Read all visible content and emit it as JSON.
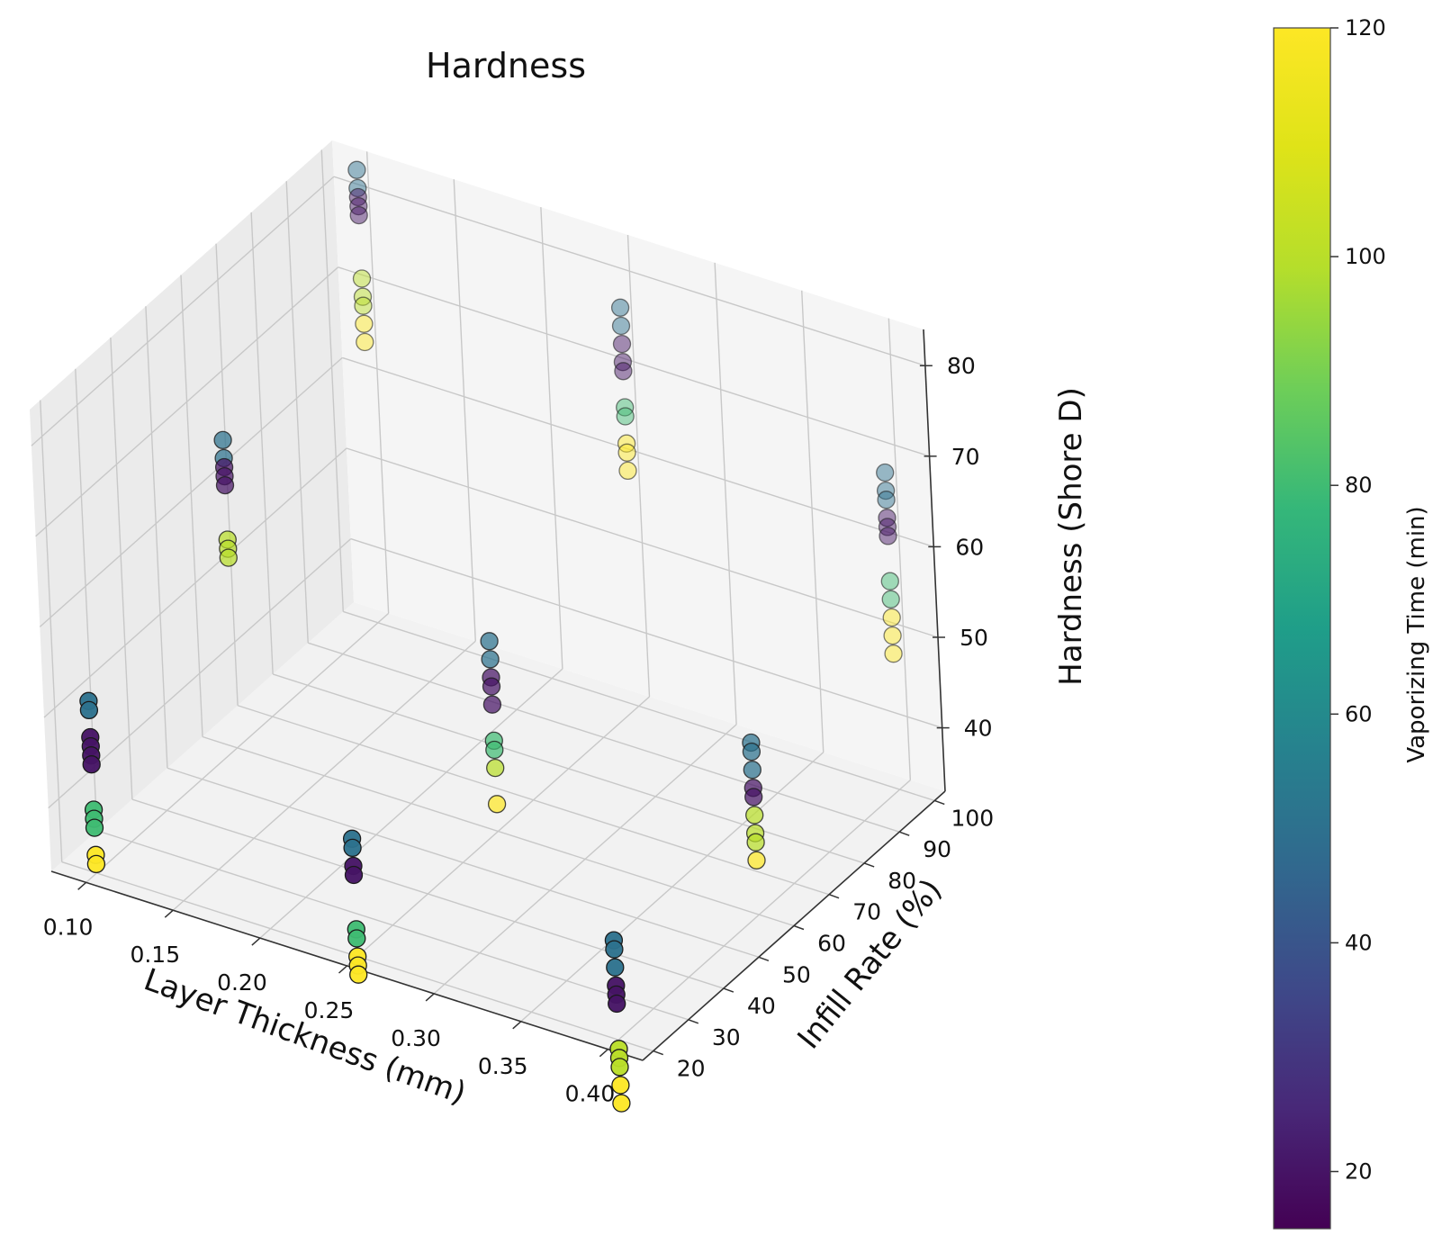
{
  "chart_data": {
    "type": "scatter",
    "projection": "3d",
    "title": "Hardness",
    "xlabel": "Layer Thickness (mm)",
    "ylabel": "Infill Rate (%)",
    "zlabel": "Hardness (Shore D)",
    "colorbar_label": "Vaporizing Time (min)",
    "xlim": [
      0.08,
      0.42
    ],
    "ylim": [
      17,
      103
    ],
    "zlim": [
      33,
      84
    ],
    "clim": [
      15,
      120
    ],
    "x_ticks": [
      "0.10",
      "0.15",
      "0.20",
      "0.25",
      "0.30",
      "0.35",
      "0.40"
    ],
    "y_ticks": [
      "20",
      "30",
      "40",
      "50",
      "60",
      "70",
      "80",
      "90",
      "100"
    ],
    "z_ticks": [
      "40",
      "50",
      "60",
      "70",
      "80"
    ],
    "colorbar_ticks": [
      "20",
      "40",
      "60",
      "80",
      "100",
      "120"
    ],
    "point_groups": [
      {
        "layer_thickness": 0.1,
        "infill_rate": 20,
        "points": [
          [
            50,
            52
          ],
          [
            50,
            51
          ],
          [
            20,
            48
          ],
          [
            20,
            47
          ],
          [
            20,
            46
          ],
          [
            20,
            45
          ],
          [
            80,
            40
          ],
          [
            80,
            39
          ],
          [
            80,
            38
          ],
          [
            120,
            35
          ],
          [
            120,
            34
          ]
        ]
      },
      {
        "layer_thickness": 0.1,
        "infill_rate": 60,
        "points": [
          [
            50,
            67
          ],
          [
            50,
            65
          ],
          [
            20,
            64
          ],
          [
            20,
            63
          ],
          [
            20,
            62
          ],
          [
            100,
            56
          ],
          [
            100,
            55
          ],
          [
            100,
            54
          ]
        ]
      },
      {
        "layer_thickness": 0.1,
        "infill_rate": 100,
        "points": [
          [
            50,
            83
          ],
          [
            50,
            81
          ],
          [
            20,
            80
          ],
          [
            20,
            79
          ],
          [
            20,
            78
          ],
          [
            100,
            71
          ],
          [
            100,
            69
          ],
          [
            100,
            68
          ],
          [
            120,
            66
          ],
          [
            120,
            64
          ]
        ]
      },
      {
        "layer_thickness": 0.25,
        "infill_rate": 20,
        "points": [
          [
            50,
            46
          ],
          [
            50,
            45
          ],
          [
            20,
            43
          ],
          [
            20,
            42
          ],
          [
            80,
            36
          ],
          [
            80,
            35
          ],
          [
            120,
            33
          ],
          [
            120,
            32
          ],
          [
            120,
            31
          ]
        ]
      },
      {
        "layer_thickness": 0.25,
        "infill_rate": 60,
        "points": [
          [
            50,
            54
          ],
          [
            50,
            52
          ],
          [
            20,
            50
          ],
          [
            20,
            49
          ],
          [
            20,
            47
          ],
          [
            80,
            43
          ],
          [
            80,
            42
          ],
          [
            100,
            40
          ],
          [
            120,
            36
          ]
        ]
      },
      {
        "layer_thickness": 0.25,
        "infill_rate": 100,
        "points": [
          [
            50,
            77
          ],
          [
            50,
            75
          ],
          [
            20,
            73
          ],
          [
            20,
            71
          ],
          [
            20,
            70
          ],
          [
            80,
            66
          ],
          [
            80,
            65
          ],
          [
            120,
            62
          ],
          [
            120,
            61
          ],
          [
            120,
            59
          ]
        ]
      },
      {
        "layer_thickness": 0.4,
        "infill_rate": 20,
        "points": [
          [
            50,
            44
          ],
          [
            50,
            43
          ],
          [
            50,
            41
          ],
          [
            20,
            39
          ],
          [
            20,
            38
          ],
          [
            20,
            37
          ],
          [
            100,
            32
          ],
          [
            100,
            31
          ],
          [
            100,
            30
          ],
          [
            120,
            28
          ],
          [
            120,
            26
          ]
        ]
      },
      {
        "layer_thickness": 0.4,
        "infill_rate": 60,
        "points": [
          [
            50,
            52
          ],
          [
            50,
            51
          ],
          [
            50,
            49
          ],
          [
            20,
            47
          ],
          [
            20,
            46
          ],
          [
            100,
            44
          ],
          [
            100,
            42
          ],
          [
            100,
            41
          ],
          [
            120,
            39
          ]
        ]
      },
      {
        "layer_thickness": 0.4,
        "infill_rate": 100,
        "points": [
          [
            50,
            68
          ],
          [
            50,
            66
          ],
          [
            50,
            65
          ],
          [
            20,
            63
          ],
          [
            20,
            62
          ],
          [
            20,
            61
          ],
          [
            80,
            56
          ],
          [
            80,
            54
          ],
          [
            120,
            52
          ],
          [
            120,
            50
          ],
          [
            120,
            48
          ]
        ]
      }
    ],
    "point_format": "[vaporizing_time_min, hardness_shore_d]"
  }
}
